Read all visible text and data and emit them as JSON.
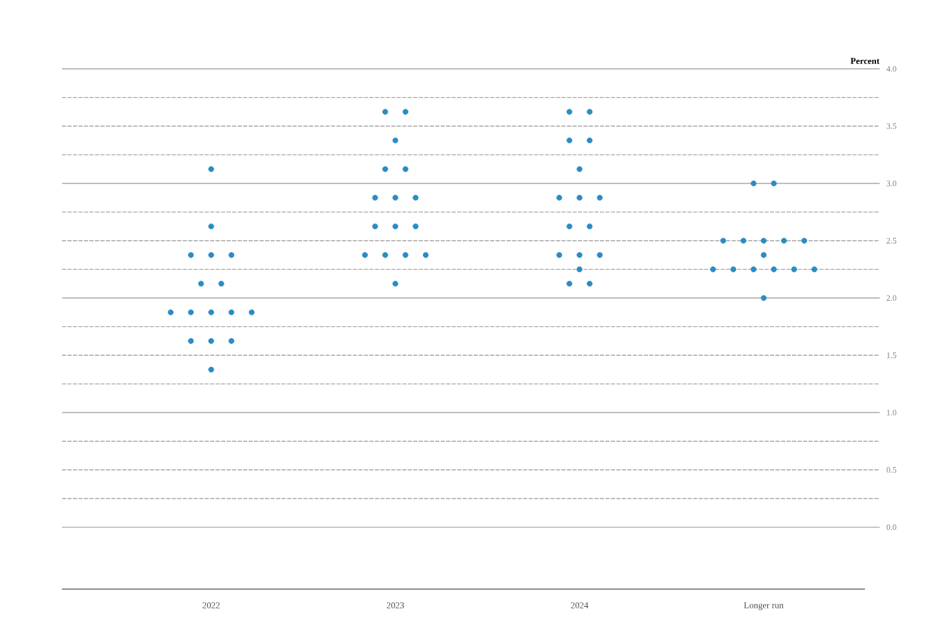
{
  "chart_data": {
    "type": "scatter",
    "ylabel": "Percent",
    "categories": [
      "2022",
      "2023",
      "2024",
      "Longer run"
    ],
    "series": [
      {
        "color": "#2b8cc4",
        "values": [
          1.375,
          2.125,
          2.125,
          2.0
        ]
      },
      {
        "color": "#2b8cc4",
        "values": [
          1.625,
          2.375,
          2.125,
          2.25
        ]
      },
      {
        "color": "#2b8cc4",
        "values": [
          1.625,
          2.375,
          2.25,
          2.25
        ]
      },
      {
        "color": "#2b8cc4",
        "values": [
          1.625,
          2.375,
          2.375,
          2.25
        ]
      },
      {
        "color": "#2b8cc4",
        "values": [
          1.875,
          2.375,
          2.375,
          2.25
        ]
      },
      {
        "color": "#2b8cc4",
        "values": [
          1.875,
          2.625,
          2.375,
          2.25
        ]
      },
      {
        "color": "#2b8cc4",
        "values": [
          1.875,
          2.625,
          2.625,
          2.25
        ]
      },
      {
        "color": "#2b8cc4",
        "values": [
          1.875,
          2.625,
          2.625,
          2.375
        ]
      },
      {
        "color": "#2b8cc4",
        "values": [
          1.875,
          2.875,
          2.875,
          2.5
        ]
      },
      {
        "color": "#2b8cc4",
        "values": [
          2.125,
          2.875,
          2.875,
          2.5
        ]
      },
      {
        "color": "#2b8cc4",
        "values": [
          2.125,
          2.875,
          2.875,
          2.5
        ]
      },
      {
        "color": "#2b8cc4",
        "values": [
          2.375,
          3.125,
          3.125,
          2.5
        ]
      },
      {
        "color": "#2b8cc4",
        "values": [
          2.375,
          3.125,
          3.375,
          2.5
        ]
      },
      {
        "color": "#2b8cc4",
        "values": [
          2.375,
          3.375,
          3.375,
          3.0
        ]
      },
      {
        "color": "#2b8cc4",
        "values": [
          2.625,
          3.625,
          3.625,
          3.0
        ]
      },
      {
        "color": "#2b8cc4",
        "values": [
          3.125,
          3.625,
          3.625,
          null
        ]
      }
    ],
    "ylim": [
      0,
      4
    ],
    "yticks": [
      {
        "value": 0,
        "label": "0.0"
      },
      {
        "value": 0.25,
        "label": null
      },
      {
        "value": 0.5,
        "label": "0.5"
      },
      {
        "value": 0.75,
        "label": null
      },
      {
        "value": 1,
        "label": "1.0"
      },
      {
        "value": 1.25,
        "label": null
      },
      {
        "value": 1.5,
        "label": "1.5"
      },
      {
        "value": 1.75,
        "label": null
      },
      {
        "value": 2,
        "label": "2.0"
      },
      {
        "value": 2.25,
        "label": null
      },
      {
        "value": 2.5,
        "label": "2.5"
      },
      {
        "value": 2.75,
        "label": null
      },
      {
        "value": 3,
        "label": "3.0"
      },
      {
        "value": 3.25,
        "label": null
      },
      {
        "value": 3.5,
        "label": "3.5"
      },
      {
        "value": 3.75,
        "label": null
      },
      {
        "value": 4,
        "label": "4.0"
      }
    ],
    "grid": "y",
    "marker": "circle"
  }
}
